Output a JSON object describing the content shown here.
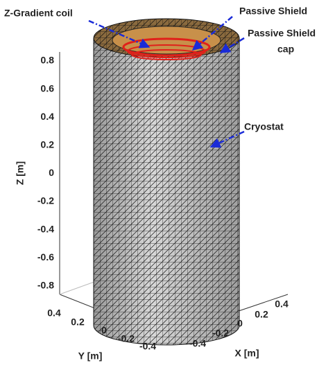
{
  "annotations": [
    {
      "lines": [
        "Z-Gradient coil"
      ]
    },
    {
      "lines": [
        "Passive Shield"
      ]
    },
    {
      "lines": [
        "Passive Shield",
        "cap"
      ]
    },
    {
      "lines": [
        "Cryostat"
      ]
    }
  ],
  "axes": {
    "z": {
      "label": "Z [m]",
      "ticks": [
        "0.8",
        "0.6",
        "0.4",
        "0.2",
        "0",
        "-0.2",
        "-0.4",
        "-0.6",
        "-0.8"
      ]
    },
    "y": {
      "label": "Y [m]",
      "ticks": [
        "0.4",
        "0.2",
        "0",
        "-0.2",
        "-0.4"
      ]
    },
    "x": {
      "label": "X [m]",
      "ticks": [
        "-0.4",
        "-0.2",
        "0",
        "0.2",
        "0.4"
      ]
    }
  }
}
